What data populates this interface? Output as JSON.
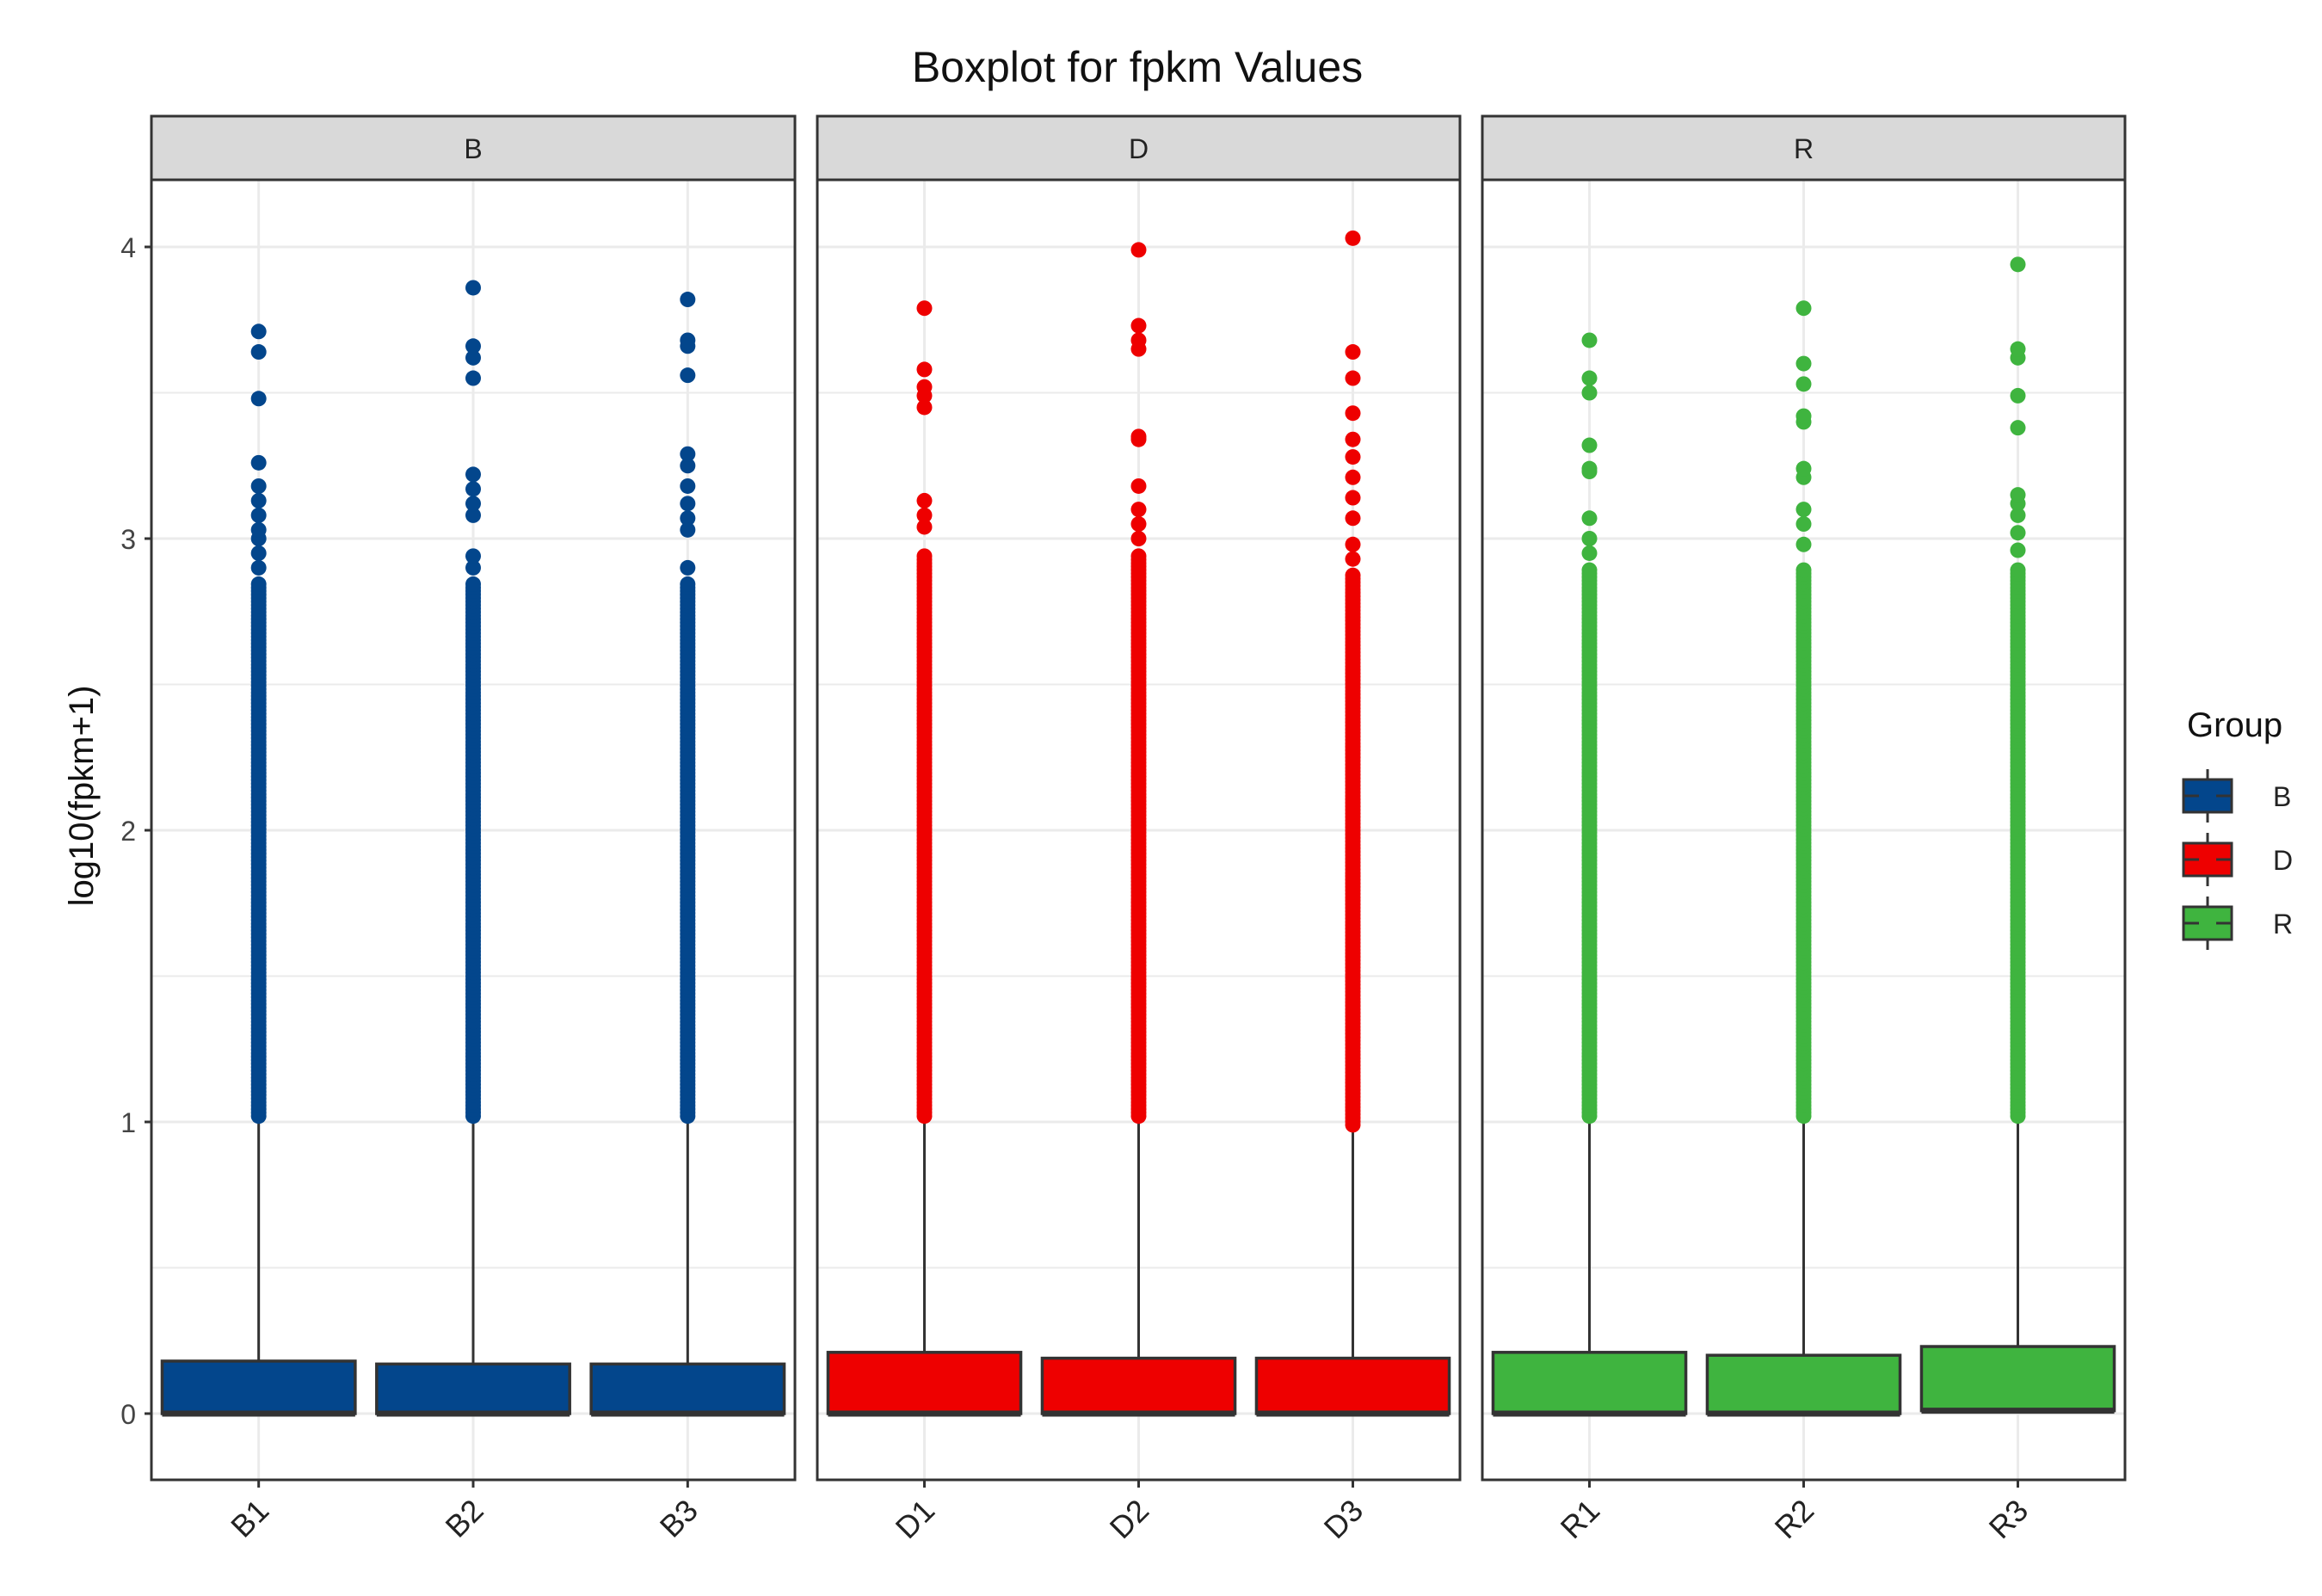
{
  "chart_data": {
    "type": "boxplot",
    "title": "Boxplot for fpkm Values",
    "xlabel": "",
    "ylabel": "log10(fpkm+1)",
    "ylim": [
      -0.2,
      4.2
    ],
    "yticks": [
      0,
      1,
      2,
      3,
      4
    ],
    "grid": true,
    "legend": {
      "title": "Group",
      "position": "right",
      "entries": [
        "B",
        "D",
        "R"
      ]
    },
    "colors": {
      "B": "#03468C",
      "D": "#EE0000",
      "R": "#3FB43F"
    },
    "facets": [
      {
        "label": "B",
        "samples": [
          {
            "name": "B1",
            "min": 0,
            "q1": 0,
            "median": 0,
            "q3": 0.18,
            "whisker_high": 1.0,
            "dense_outliers_to": 2.85,
            "outliers": [
              2.9,
              2.95,
              3.0,
              3.03,
              3.08,
              3.13,
              3.18,
              3.26,
              3.48,
              3.64,
              3.71
            ]
          },
          {
            "name": "B2",
            "min": 0,
            "q1": 0,
            "median": 0,
            "q3": 0.17,
            "whisker_high": 1.0,
            "dense_outliers_to": 2.85,
            "outliers": [
              2.9,
              2.94,
              3.08,
              3.12,
              3.17,
              3.22,
              3.55,
              3.62,
              3.66,
              3.86
            ]
          },
          {
            "name": "B3",
            "min": 0,
            "q1": 0,
            "median": 0,
            "q3": 0.17,
            "whisker_high": 1.0,
            "dense_outliers_to": 2.85,
            "outliers": [
              2.9,
              3.03,
              3.07,
              3.12,
              3.18,
              3.25,
              3.29,
              3.56,
              3.66,
              3.68,
              3.82
            ]
          }
        ]
      },
      {
        "label": "D",
        "samples": [
          {
            "name": "D1",
            "min": 0,
            "q1": 0,
            "median": 0,
            "q3": 0.21,
            "whisker_high": 1.0,
            "dense_outliers_to": 2.95,
            "outliers": [
              3.04,
              3.08,
              3.13,
              3.45,
              3.49,
              3.52,
              3.58,
              3.79
            ]
          },
          {
            "name": "D2",
            "min": 0,
            "q1": 0,
            "median": 0,
            "q3": 0.19,
            "whisker_high": 1.0,
            "dense_outliers_to": 2.95,
            "outliers": [
              3.0,
              3.05,
              3.1,
              3.18,
              3.34,
              3.35,
              3.65,
              3.68,
              3.73,
              3.99
            ]
          },
          {
            "name": "D3",
            "min": 0,
            "q1": 0,
            "median": 0,
            "q3": 0.19,
            "whisker_high": 0.97,
            "dense_outliers_to": 2.88,
            "outliers": [
              2.93,
              2.98,
              3.07,
              3.14,
              3.21,
              3.28,
              3.34,
              3.43,
              3.55,
              3.64,
              4.03
            ]
          }
        ]
      },
      {
        "label": "R",
        "samples": [
          {
            "name": "R1",
            "min": 0,
            "q1": 0,
            "median": 0,
            "q3": 0.21,
            "whisker_high": 1.0,
            "dense_outliers_to": 2.9,
            "outliers": [
              2.95,
              3.0,
              3.07,
              3.23,
              3.24,
              3.32,
              3.5,
              3.55,
              3.68
            ]
          },
          {
            "name": "R2",
            "min": 0,
            "q1": 0,
            "median": 0,
            "q3": 0.2,
            "whisker_high": 1.0,
            "dense_outliers_to": 2.9,
            "outliers": [
              2.98,
              3.05,
              3.1,
              3.21,
              3.24,
              3.4,
              3.42,
              3.53,
              3.6,
              3.79
            ]
          },
          {
            "name": "R3",
            "min": 0,
            "q1": 0.01,
            "median": 0.01,
            "q3": 0.23,
            "whisker_high": 1.0,
            "dense_outliers_to": 2.9,
            "outliers": [
              2.96,
              3.02,
              3.08,
              3.12,
              3.15,
              3.38,
              3.49,
              3.62,
              3.65,
              3.94
            ]
          }
        ]
      }
    ]
  }
}
